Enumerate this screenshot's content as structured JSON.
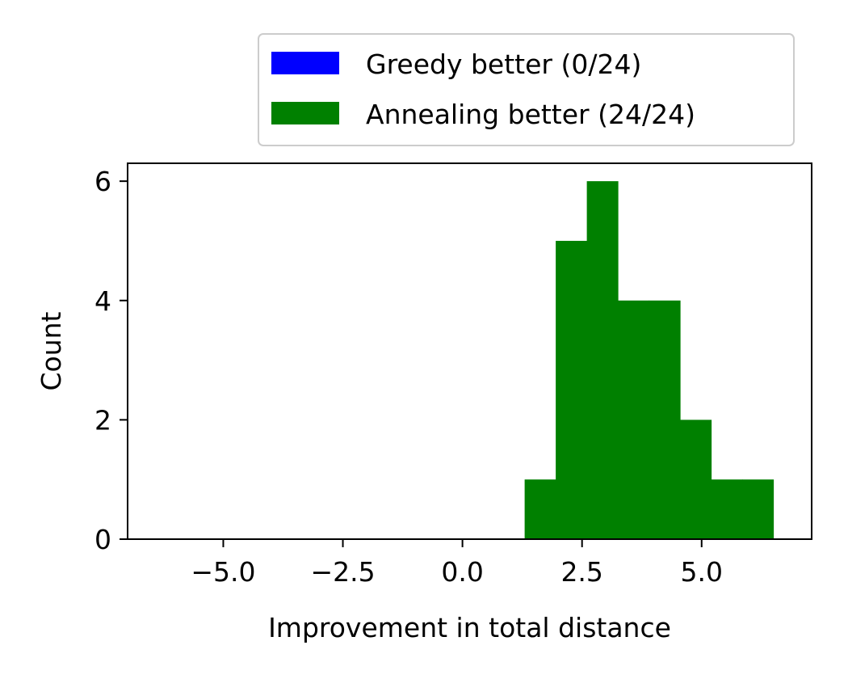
{
  "chart_data": {
    "type": "bar",
    "xlabel": "Improvement in total distance",
    "ylabel": "Count",
    "xlim": [
      -7.0,
      7.3
    ],
    "ylim": [
      0,
      6.3
    ],
    "xticks": [
      {
        "value": -5.0,
        "label": "−5.0"
      },
      {
        "value": -2.5,
        "label": "−2.5"
      },
      {
        "value": 0.0,
        "label": "0.0"
      },
      {
        "value": 2.5,
        "label": "2.5"
      },
      {
        "value": 5.0,
        "label": "5.0"
      }
    ],
    "yticks": [
      {
        "value": 0,
        "label": "0"
      },
      {
        "value": 2,
        "label": "2"
      },
      {
        "value": 4,
        "label": "4"
      },
      {
        "value": 6,
        "label": "6"
      }
    ],
    "legend_position": "top-right, above plot",
    "grid": false,
    "series": [
      {
        "name": "Greedy better (0/24)",
        "color": "#0000ff",
        "bins": []
      },
      {
        "name": "Annealing better (24/24)",
        "color": "#008000",
        "bins": [
          {
            "x0": 1.3,
            "x1": 1.95,
            "count": 1
          },
          {
            "x0": 1.95,
            "x1": 2.6,
            "count": 5
          },
          {
            "x0": 2.6,
            "x1": 3.25,
            "count": 6
          },
          {
            "x0": 3.25,
            "x1": 3.9,
            "count": 4
          },
          {
            "x0": 3.9,
            "x1": 4.55,
            "count": 4
          },
          {
            "x0": 4.55,
            "x1": 5.2,
            "count": 2
          },
          {
            "x0": 5.2,
            "x1": 5.85,
            "count": 1
          },
          {
            "x0": 5.85,
            "x1": 6.5,
            "count": 1
          }
        ]
      }
    ]
  }
}
